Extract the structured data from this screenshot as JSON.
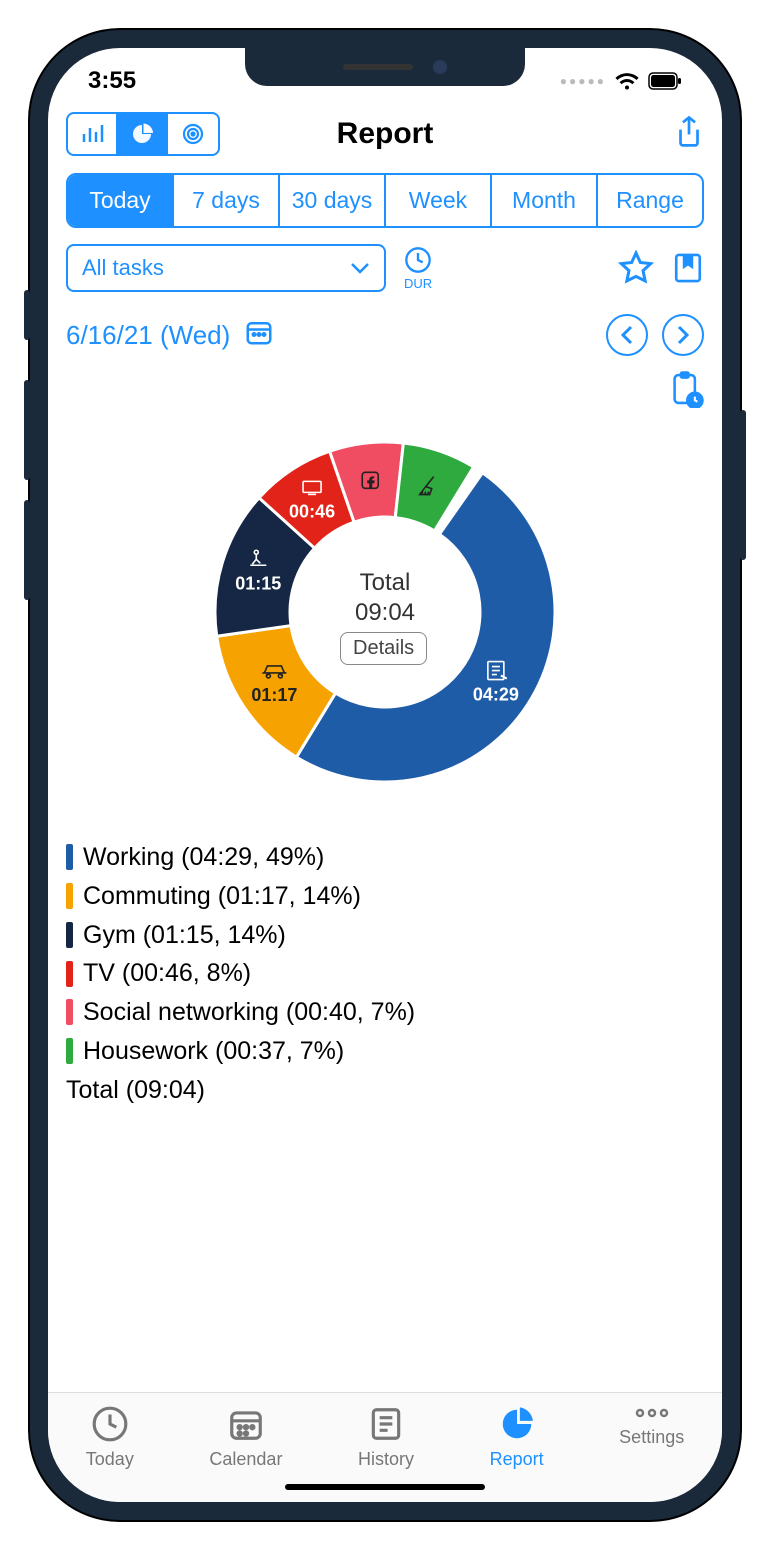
{
  "status": {
    "time": "3:55"
  },
  "header": {
    "title": "Report",
    "view_modes": [
      {
        "name": "bar",
        "active": false
      },
      {
        "name": "pie",
        "active": true
      },
      {
        "name": "target",
        "active": false
      }
    ]
  },
  "ranges": {
    "items": [
      "Today",
      "7 days",
      "30 days",
      "Week",
      "Month",
      "Range"
    ],
    "active_index": 0
  },
  "filter": {
    "task_select_label": "All tasks",
    "dur_label": "DUR"
  },
  "date": {
    "label": "6/16/21 (Wed)"
  },
  "chart": {
    "type": "donut",
    "inner_radius": 95,
    "outer_radius": 170,
    "center_title": "Total",
    "center_value": "09:04",
    "details_label": "Details",
    "background_color": "#ffffff",
    "slices": [
      {
        "key": "working",
        "label": "Working",
        "time": "04:29",
        "pct": 49,
        "color": "#1f5ca8",
        "icon": "paper",
        "show_time_on_slice": true
      },
      {
        "key": "commuting",
        "label": "Commuting",
        "time": "01:17",
        "pct": 14,
        "color": "#f6a200",
        "icon": "car",
        "show_time_on_slice": true
      },
      {
        "key": "gym",
        "label": "Gym",
        "time": "01:15",
        "pct": 14,
        "color": "#152744",
        "icon": "gym",
        "show_time_on_slice": true
      },
      {
        "key": "tv",
        "label": "TV",
        "time": "00:46",
        "pct": 8,
        "color": "#e2231a",
        "icon": "tv",
        "show_time_on_slice": true
      },
      {
        "key": "social",
        "label": "Social networking",
        "time": "00:40",
        "pct": 7,
        "color": "#f14d62",
        "icon": "fb",
        "show_time_on_slice": false
      },
      {
        "key": "housework",
        "label": "Housework",
        "time": "00:37",
        "pct": 7,
        "color": "#2eaa3f",
        "icon": "broom",
        "show_time_on_slice": false
      }
    ],
    "start_angle_deg": -55,
    "slice_label_color_dark": "#222222",
    "slice_label_color_light": "#ffffff"
  },
  "legend": {
    "total_label": "Total (09:04)"
  },
  "tabbar": {
    "items": [
      {
        "key": "today",
        "label": "Today"
      },
      {
        "key": "calendar",
        "label": "Calendar"
      },
      {
        "key": "history",
        "label": "History"
      },
      {
        "key": "report",
        "label": "Report"
      },
      {
        "key": "settings",
        "label": "Settings"
      }
    ],
    "active_index": 3
  },
  "colors": {
    "accent": "#1e90ff",
    "text": "#222222",
    "muted": "#777777"
  }
}
